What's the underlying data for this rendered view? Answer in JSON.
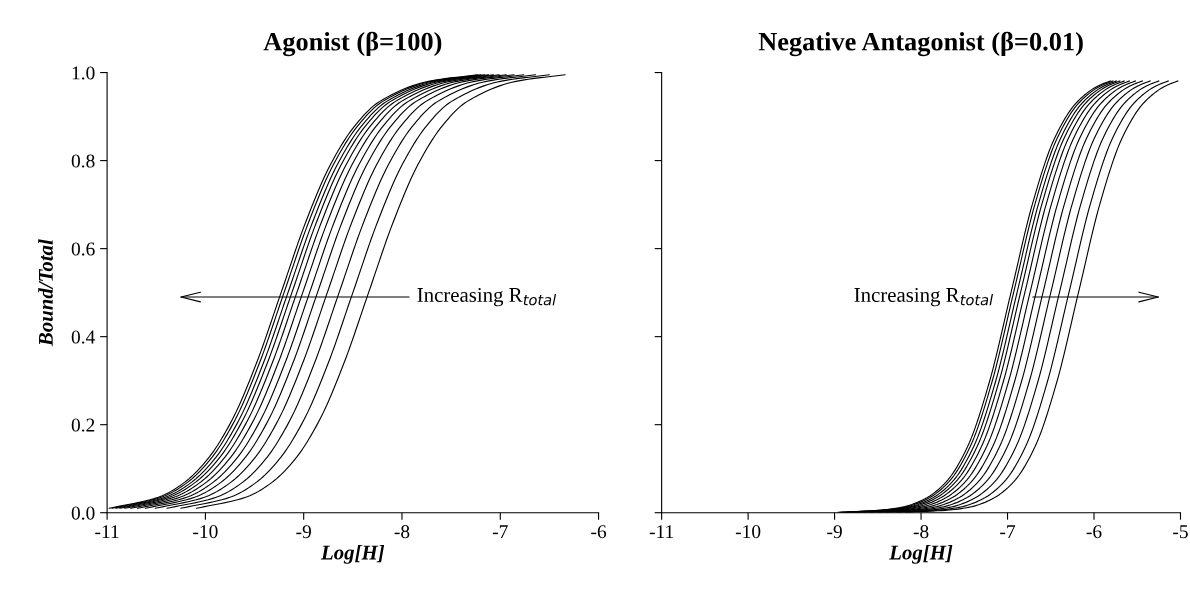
{
  "chart_data": [
    {
      "type": "line",
      "title": "Agonist (β=100)",
      "xlabel": "Log[H]",
      "ylabel": "Bound/Total",
      "xlim": [
        -11,
        -6
      ],
      "xticks": [
        -11,
        -10,
        -9,
        -8,
        -7,
        -6
      ],
      "ylim": [
        0,
        1
      ],
      "yticks": [
        {
          "value": 0,
          "label": "0.0"
        },
        {
          "value": 0.2,
          "label": "0.2"
        },
        {
          "value": 0.4,
          "label": "0.4"
        },
        {
          "value": 0.6,
          "label": "0.6"
        },
        {
          "value": 0.8,
          "label": "0.8"
        },
        {
          "value": 1,
          "label": "1.0"
        }
      ],
      "annotations": [
        "Increasing R$_{total}$"
      ],
      "series": [
        {
          "color": "#000000",
          "x": [
            -10.98,
            -10.48,
            -10.23,
            -9.98,
            -9.73,
            -9.48,
            -9.23,
            -8.98,
            -8.73,
            -8.48,
            -8.23,
            -7.73,
            -7.23
          ],
          "values": [
            0.01,
            0.035,
            0.066,
            0.121,
            0.21,
            0.34,
            0.5,
            0.66,
            0.79,
            0.879,
            0.934,
            0.98,
            0.995
          ]
        },
        {
          "color": "#000000",
          "x": [
            -10.95,
            -10.45,
            -10.2,
            -9.95,
            -9.7,
            -9.45,
            -9.2,
            -8.95,
            -8.7,
            -8.45,
            -8.2,
            -7.7,
            -7.2
          ],
          "values": [
            0.01,
            0.035,
            0.066,
            0.121,
            0.21,
            0.34,
            0.5,
            0.66,
            0.79,
            0.879,
            0.934,
            0.98,
            0.995
          ]
        },
        {
          "color": "#000000",
          "x": [
            -10.91,
            -10.41,
            -10.16,
            -9.91,
            -9.66,
            -9.41,
            -9.16,
            -8.91,
            -8.66,
            -8.41,
            -8.16,
            -7.66,
            -7.16
          ],
          "values": [
            0.01,
            0.035,
            0.066,
            0.121,
            0.21,
            0.34,
            0.5,
            0.66,
            0.79,
            0.879,
            0.934,
            0.98,
            0.995
          ]
        },
        {
          "color": "#000000",
          "x": [
            -10.87,
            -10.37,
            -10.12,
            -9.87,
            -9.62,
            -9.37,
            -9.12,
            -8.87,
            -8.62,
            -8.37,
            -8.12,
            -7.62,
            -7.12
          ],
          "values": [
            0.01,
            0.035,
            0.066,
            0.121,
            0.21,
            0.34,
            0.5,
            0.66,
            0.79,
            0.879,
            0.934,
            0.98,
            0.995
          ]
        },
        {
          "color": "#000000",
          "x": [
            -10.82,
            -10.32,
            -10.07,
            -9.82,
            -9.57,
            -9.32,
            -9.07,
            -8.82,
            -8.57,
            -8.32,
            -8.07,
            -7.57,
            -7.07
          ],
          "values": [
            0.01,
            0.035,
            0.066,
            0.121,
            0.21,
            0.34,
            0.5,
            0.66,
            0.79,
            0.879,
            0.934,
            0.98,
            0.995
          ]
        },
        {
          "color": "#000000",
          "x": [
            -10.76,
            -10.26,
            -10.01,
            -9.76,
            -9.51,
            -9.26,
            -9.01,
            -8.76,
            -8.51,
            -8.26,
            -8.01,
            -7.51,
            -7.01
          ],
          "values": [
            0.01,
            0.035,
            0.066,
            0.121,
            0.21,
            0.34,
            0.5,
            0.66,
            0.79,
            0.879,
            0.934,
            0.98,
            0.995
          ]
        },
        {
          "color": "#000000",
          "x": [
            -10.69,
            -10.19,
            -9.94,
            -9.69,
            -9.44,
            -9.19,
            -8.94,
            -8.69,
            -8.44,
            -8.19,
            -7.94,
            -7.44,
            -6.94
          ],
          "values": [
            0.01,
            0.035,
            0.066,
            0.121,
            0.21,
            0.34,
            0.5,
            0.66,
            0.79,
            0.879,
            0.934,
            0.98,
            0.995
          ]
        },
        {
          "color": "#000000",
          "x": [
            -10.61,
            -10.11,
            -9.86,
            -9.61,
            -9.36,
            -9.11,
            -8.86,
            -8.61,
            -8.36,
            -8.11,
            -7.86,
            -7.36,
            -6.86
          ],
          "values": [
            0.01,
            0.035,
            0.066,
            0.121,
            0.21,
            0.34,
            0.5,
            0.66,
            0.79,
            0.879,
            0.934,
            0.98,
            0.995
          ]
        },
        {
          "color": "#000000",
          "x": [
            -10.51,
            -10.01,
            -9.76,
            -9.51,
            -9.26,
            -9.01,
            -8.76,
            -8.51,
            -8.26,
            -8.01,
            -7.76,
            -7.26,
            -6.76
          ],
          "values": [
            0.01,
            0.035,
            0.066,
            0.121,
            0.21,
            0.34,
            0.5,
            0.66,
            0.79,
            0.879,
            0.934,
            0.98,
            0.995
          ]
        },
        {
          "color": "#000000",
          "x": [
            -10.39,
            -9.89,
            -9.64,
            -9.39,
            -9.14,
            -8.89,
            -8.64,
            -8.39,
            -8.14,
            -7.89,
            -7.64,
            -7.14,
            -6.64
          ],
          "values": [
            0.01,
            0.035,
            0.066,
            0.121,
            0.21,
            0.34,
            0.5,
            0.66,
            0.79,
            0.879,
            0.934,
            0.98,
            0.995
          ]
        },
        {
          "color": "#000000",
          "x": [
            -10.25,
            -9.75,
            -9.5,
            -9.25,
            -9,
            -8.75,
            -8.5,
            -8.25,
            -8,
            -7.75,
            -7.5,
            -7,
            -6.5
          ],
          "values": [
            0.01,
            0.035,
            0.066,
            0.121,
            0.21,
            0.34,
            0.5,
            0.66,
            0.79,
            0.879,
            0.934,
            0.98,
            0.995
          ]
        },
        {
          "color": "#000000",
          "x": [
            -10.09,
            -9.59,
            -9.34,
            -9.09,
            -8.84,
            -8.59,
            -8.34,
            -8.09,
            -7.84,
            -7.59,
            -7.34,
            -6.84,
            -6.34
          ],
          "values": [
            0.01,
            0.035,
            0.066,
            0.121,
            0.21,
            0.34,
            0.5,
            0.66,
            0.79,
            0.879,
            0.934,
            0.98,
            0.995
          ]
        }
      ]
    },
    {
      "type": "line",
      "title": "Negative Antagonist (β=0.01)",
      "xlabel": "Log[H]",
      "tick_labels": "x",
      "xlim": [
        -11,
        -5
      ],
      "xticks": [
        -11,
        -10,
        -9,
        -8,
        -7,
        -6,
        -5
      ],
      "ylim": [
        0,
        1
      ],
      "yticks": [
        0,
        0.2,
        0.4,
        0.6,
        0.8,
        1
      ],
      "annotations": [
        "Increasing R$_{total}$"
      ],
      "series": [
        {
          "color": "#000000",
          "x": [
            -8.96,
            -8.46,
            -8.21,
            -7.96,
            -7.71,
            -7.46,
            -7.21,
            -6.96,
            -6.71,
            -6.46,
            -6.21,
            -5.96,
            -5.81
          ],
          "values": [
            0.001,
            0.006,
            0.013,
            0.031,
            0.07,
            0.151,
            0.297,
            0.5,
            0.703,
            0.849,
            0.93,
            0.969,
            0.981
          ]
        },
        {
          "color": "#000000",
          "x": [
            -8.93,
            -8.43,
            -8.18,
            -7.93,
            -7.68,
            -7.43,
            -7.18,
            -6.93,
            -6.68,
            -6.43,
            -6.18,
            -5.93,
            -5.78
          ],
          "values": [
            0.001,
            0.006,
            0.013,
            0.031,
            0.07,
            0.151,
            0.297,
            0.5,
            0.703,
            0.849,
            0.93,
            0.969,
            0.981
          ]
        },
        {
          "color": "#000000",
          "x": [
            -8.89,
            -8.39,
            -8.14,
            -7.89,
            -7.64,
            -7.39,
            -7.14,
            -6.89,
            -6.64,
            -6.39,
            -6.14,
            -5.89,
            -5.74
          ],
          "values": [
            0.001,
            0.006,
            0.013,
            0.031,
            0.07,
            0.151,
            0.297,
            0.5,
            0.703,
            0.849,
            0.93,
            0.969,
            0.981
          ]
        },
        {
          "color": "#000000",
          "x": [
            -8.85,
            -8.35,
            -8.1,
            -7.85,
            -7.6,
            -7.35,
            -7.1,
            -6.85,
            -6.6,
            -6.35,
            -6.1,
            -5.85,
            -5.7
          ],
          "values": [
            0.001,
            0.006,
            0.013,
            0.031,
            0.07,
            0.151,
            0.297,
            0.5,
            0.703,
            0.849,
            0.93,
            0.969,
            0.981
          ]
        },
        {
          "color": "#000000",
          "x": [
            -8.8,
            -8.3,
            -8.05,
            -7.8,
            -7.55,
            -7.3,
            -7.05,
            -6.8,
            -6.55,
            -6.3,
            -6.05,
            -5.8,
            -5.65
          ],
          "values": [
            0.001,
            0.006,
            0.013,
            0.031,
            0.07,
            0.151,
            0.297,
            0.5,
            0.703,
            0.849,
            0.93,
            0.969,
            0.981
          ]
        },
        {
          "color": "#000000",
          "x": [
            -8.74,
            -8.24,
            -7.99,
            -7.74,
            -7.49,
            -7.24,
            -6.99,
            -6.74,
            -6.49,
            -6.24,
            -5.99,
            -5.74,
            -5.59
          ],
          "values": [
            0.001,
            0.006,
            0.013,
            0.031,
            0.07,
            0.151,
            0.297,
            0.5,
            0.703,
            0.849,
            0.93,
            0.969,
            0.981
          ]
        },
        {
          "color": "#000000",
          "x": [
            -8.67,
            -8.17,
            -7.92,
            -7.67,
            -7.42,
            -7.17,
            -6.92,
            -6.67,
            -6.42,
            -6.17,
            -5.92,
            -5.67,
            -5.52
          ],
          "values": [
            0.001,
            0.006,
            0.013,
            0.031,
            0.07,
            0.151,
            0.297,
            0.5,
            0.703,
            0.849,
            0.93,
            0.969,
            0.981
          ]
        },
        {
          "color": "#000000",
          "x": [
            -8.59,
            -8.09,
            -7.84,
            -7.59,
            -7.34,
            -7.09,
            -6.84,
            -6.59,
            -6.34,
            -6.09,
            -5.84,
            -5.59,
            -5.44
          ],
          "values": [
            0.001,
            0.006,
            0.013,
            0.031,
            0.07,
            0.151,
            0.297,
            0.5,
            0.703,
            0.849,
            0.93,
            0.969,
            0.981
          ]
        },
        {
          "color": "#000000",
          "x": [
            -8.5,
            -8,
            -7.75,
            -7.5,
            -7.25,
            -7,
            -6.75,
            -6.5,
            -6.25,
            -6,
            -5.75,
            -5.5,
            -5.35
          ],
          "values": [
            0.001,
            0.006,
            0.013,
            0.031,
            0.07,
            0.151,
            0.297,
            0.5,
            0.703,
            0.849,
            0.93,
            0.969,
            0.981
          ]
        },
        {
          "color": "#000000",
          "x": [
            -8.4,
            -7.9,
            -7.65,
            -7.4,
            -7.15,
            -6.9,
            -6.65,
            -6.4,
            -6.15,
            -5.9,
            -5.65,
            -5.4,
            -5.25
          ],
          "values": [
            0.001,
            0.006,
            0.013,
            0.031,
            0.07,
            0.151,
            0.297,
            0.5,
            0.703,
            0.849,
            0.93,
            0.969,
            0.981
          ]
        },
        {
          "color": "#000000",
          "x": [
            -8.29,
            -7.79,
            -7.54,
            -7.29,
            -7.04,
            -6.79,
            -6.54,
            -6.29,
            -6.04,
            -5.79,
            -5.54,
            -5.29,
            -5.14
          ],
          "values": [
            0.001,
            0.006,
            0.013,
            0.031,
            0.07,
            0.151,
            0.297,
            0.5,
            0.703,
            0.849,
            0.93,
            0.969,
            0.981
          ]
        },
        {
          "color": "#000000",
          "x": [
            -8.18,
            -7.68,
            -7.43,
            -7.18,
            -6.93,
            -6.68,
            -6.43,
            -6.18,
            -5.93,
            -5.68,
            -5.43,
            -5.18,
            -5.03
          ],
          "values": [
            0.001,
            0.006,
            0.013,
            0.031,
            0.07,
            0.151,
            0.297,
            0.5,
            0.703,
            0.849,
            0.93,
            0.969,
            0.981
          ]
        }
      ]
    }
  ]
}
